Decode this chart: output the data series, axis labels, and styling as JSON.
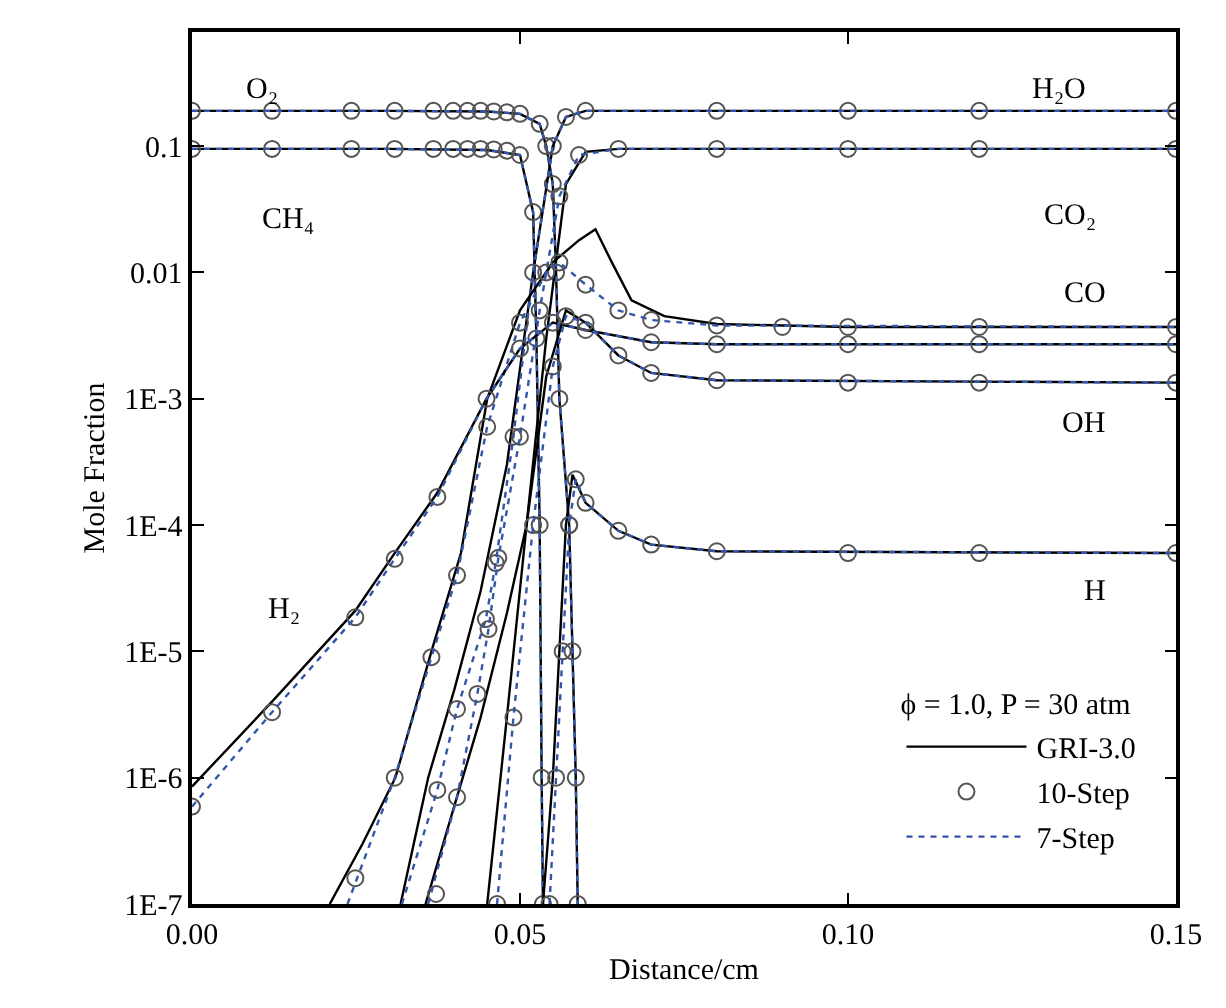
{
  "chart_data": {
    "type": "line",
    "xlabel": "Distance/cm",
    "ylabel": "Mole Fraction",
    "log": "y",
    "xlim": [
      0,
      0.15
    ],
    "xticks": [
      {
        "value": 0,
        "label": "0.00"
      },
      {
        "value": 0.05,
        "label": "0.05"
      },
      {
        "value": 0.1,
        "label": "0.10"
      },
      {
        "value": 0.15,
        "label": "0.15"
      }
    ],
    "ylim": [
      1e-07,
      0.8
    ],
    "yticks": [
      {
        "value": 1e-07,
        "label": "1E-7"
      },
      {
        "value": 1e-06,
        "label": "1E-6"
      },
      {
        "value": 1e-05,
        "label": "1E-5"
      },
      {
        "value": 0.0001,
        "label": "1E-4"
      },
      {
        "value": 0.001,
        "label": "1E-3"
      },
      0.01,
      0.1
    ],
    "legend": "bottom right",
    "legend_title": "ϕ = 1.0, P = 30 atm",
    "annotations": [
      "O₂",
      "CH₄",
      "H₂O",
      "CO₂",
      "CO",
      "OH",
      "H",
      "H₂"
    ],
    "series": [
      {
        "name": "GRI-3.0",
        "type": "line",
        "color": "#000000",
        "line_style": "solid",
        "marker": "none",
        "x": [
          0,
          0.03,
          0.045,
          0.05,
          0.053,
          0.054,
          0.055,
          0.0555,
          0.056,
          0.0575,
          0.058,
          0.0585,
          0.0588
        ],
        "values": [
          0.19,
          0.19,
          0.188,
          0.18,
          0.15,
          0.1,
          0.05,
          0.01,
          0.001,
          0.0001,
          1e-05,
          1e-06,
          1e-07
        ]
      },
      {
        "name": "10-Step",
        "type": "scatter",
        "color": "#555555",
        "marker": "circle",
        "x": [
          0,
          0.0122,
          0.0243,
          0.0309,
          0.0368,
          0.0398,
          0.042,
          0.044,
          0.046,
          0.048,
          0.05,
          0.053,
          0.054,
          0.055,
          0.0555,
          0.056,
          0.0575,
          0.058,
          0.0585,
          0.0588
        ],
        "values": [
          0.19,
          0.19,
          0.19,
          0.19,
          0.19,
          0.19,
          0.19,
          0.19,
          0.188,
          0.185,
          0.18,
          0.15,
          0.1,
          0.05,
          0.01,
          0.001,
          0.0001,
          1e-05,
          1e-06,
          1e-07
        ]
      },
      {
        "name": "7-Step",
        "type": "line",
        "color": "#3355aa",
        "line_style": "dotted",
        "marker": "none",
        "x": [
          0,
          0.03,
          0.045,
          0.05,
          0.053,
          0.054,
          0.055,
          0.0555,
          0.056,
          0.0575,
          0.058,
          0.0585,
          0.0588
        ],
        "values": [
          0.19,
          0.19,
          0.188,
          0.18,
          0.15,
          0.1,
          0.05,
          0.01,
          0.001,
          0.0001,
          1e-05,
          1e-06,
          1e-07
        ]
      },
      {
        "type": "line",
        "color": "#000000",
        "line_style": "solid",
        "marker": "none",
        "x": [
          0,
          0.03,
          0.045,
          0.05,
          0.052,
          0.0525,
          0.053,
          0.0533,
          0.0535
        ],
        "values": [
          0.095,
          0.095,
          0.093,
          0.085,
          0.03,
          0.003,
          0.0001,
          1e-06,
          1e-07
        ]
      },
      {
        "type": "scatter",
        "color": "#555555",
        "marker": "circle",
        "x": [
          0,
          0.0122,
          0.0243,
          0.0309,
          0.0368,
          0.0398,
          0.042,
          0.044,
          0.046,
          0.048,
          0.05,
          0.052,
          0.0525,
          0.053,
          0.0533,
          0.0535
        ],
        "values": [
          0.095,
          0.095,
          0.095,
          0.095,
          0.095,
          0.095,
          0.095,
          0.095,
          0.094,
          0.092,
          0.085,
          0.03,
          0.003,
          0.0001,
          1e-06,
          1e-07
        ]
      },
      {
        "type": "line",
        "color": "#3355aa",
        "line_style": "dotted",
        "marker": "none",
        "x": [
          0,
          0.03,
          0.045,
          0.05,
          0.052,
          0.0525,
          0.053,
          0.0533,
          0.0535
        ],
        "values": [
          0.095,
          0.095,
          0.093,
          0.085,
          0.03,
          0.003,
          0.0001,
          1e-06,
          1e-07
        ]
      },
      {
        "type": "line",
        "color": "#000000",
        "line_style": "solid",
        "marker": "none",
        "x": [
          0.0318,
          0.036,
          0.04,
          0.044,
          0.048,
          0.052,
          0.055,
          0.057,
          0.06,
          0.07,
          0.15
        ],
        "values": [
          1e-07,
          1e-06,
          5e-06,
          3e-05,
          0.0003,
          0.01,
          0.1,
          0.17,
          0.19,
          0.19,
          0.19
        ]
      },
      {
        "type": "scatter",
        "color": "#555555",
        "marker": "circle",
        "x": [
          0.0374,
          0.0404,
          0.0448,
          0.0463,
          0.049,
          0.052,
          0.055,
          0.057,
          0.06,
          0.08,
          0.1,
          0.12,
          0.15
        ],
        "values": [
          8e-07,
          3.5e-06,
          1.8e-05,
          5e-05,
          0.0005,
          0.01,
          0.1,
          0.17,
          0.19,
          0.19,
          0.19,
          0.19,
          0.19
        ]
      },
      {
        "type": "line",
        "color": "#3355aa",
        "line_style": "dotted",
        "marker": "none",
        "x": [
          0.032,
          0.0374,
          0.0404,
          0.0448,
          0.0463,
          0.049,
          0.052,
          0.055,
          0.057,
          0.06,
          0.15
        ],
        "values": [
          1e-07,
          8e-07,
          3.5e-06,
          1.8e-05,
          5e-05,
          0.0005,
          0.01,
          0.1,
          0.17,
          0.19,
          0.19
        ]
      },
      {
        "type": "line",
        "color": "#000000",
        "line_style": "solid",
        "marker": "none",
        "x": [
          0.0356,
          0.04,
          0.044,
          0.048,
          0.051,
          0.054,
          0.057,
          0.06,
          0.065,
          0.15
        ],
        "values": [
          1e-07,
          6e-07,
          3e-06,
          2e-05,
          0.0001,
          0.003,
          0.05,
          0.09,
          0.095,
          0.095
        ]
      },
      {
        "type": "scatter",
        "color": "#555555",
        "marker": "circle",
        "x": [
          0.0372,
          0.0404,
          0.0435,
          0.0452,
          0.0467,
          0.05,
          0.053,
          0.056,
          0.059,
          0.065,
          0.08,
          0.1,
          0.12,
          0.15
        ],
        "values": [
          1.2e-07,
          7e-07,
          4.6e-06,
          1.5e-05,
          5.5e-05,
          0.0005,
          0.005,
          0.04,
          0.085,
          0.095,
          0.095,
          0.095,
          0.095,
          0.095
        ]
      },
      {
        "type": "line",
        "color": "#3355aa",
        "line_style": "dotted",
        "marker": "none",
        "x": [
          0.036,
          0.0404,
          0.0435,
          0.0452,
          0.0467,
          0.05,
          0.053,
          0.056,
          0.059,
          0.065,
          0.15
        ],
        "values": [
          1e-07,
          7e-07,
          4.6e-06,
          1.5e-05,
          5.5e-05,
          0.0005,
          0.005,
          0.04,
          0.085,
          0.095,
          0.095
        ]
      },
      {
        "type": "line",
        "color": "#000000",
        "line_style": "solid",
        "marker": "none",
        "x": [
          0.021,
          0.026,
          0.031,
          0.0365,
          0.041,
          0.045,
          0.05,
          0.055,
          0.059,
          0.0615,
          0.064,
          0.067,
          0.072,
          0.08,
          0.1,
          0.15
        ],
        "values": [
          1e-07,
          3e-07,
          1e-06,
          1e-05,
          6e-05,
          0.001,
          0.005,
          0.012,
          0.018,
          0.022,
          0.012,
          0.006,
          0.0045,
          0.0039,
          0.0037,
          0.0037
        ]
      },
      {
        "type": "scatter",
        "color": "#555555",
        "marker": "circle",
        "x": [
          0.0249,
          0.0309,
          0.0365,
          0.0404,
          0.045,
          0.05,
          0.054,
          0.056,
          0.06,
          0.065,
          0.07,
          0.08,
          0.09,
          0.1,
          0.12,
          0.15
        ],
        "values": [
          1.6e-07,
          1e-06,
          9e-06,
          4e-05,
          0.0006,
          0.004,
          0.01,
          0.012,
          0.008,
          0.005,
          0.0042,
          0.0038,
          0.0037,
          0.0037,
          0.0037,
          0.0037
        ]
      },
      {
        "type": "line",
        "color": "#3355aa",
        "line_style": "dotted",
        "marker": "none",
        "x": [
          0.0237,
          0.0309,
          0.0365,
          0.0404,
          0.045,
          0.05,
          0.054,
          0.056,
          0.06,
          0.065,
          0.07,
          0.08,
          0.15
        ],
        "values": [
          1e-07,
          1e-06,
          9e-06,
          4e-05,
          0.0006,
          0.004,
          0.01,
          0.012,
          0.008,
          0.005,
          0.0042,
          0.0038,
          0.0037
        ]
      },
      {
        "type": "line",
        "color": "#000000",
        "line_style": "solid",
        "marker": "none",
        "x": [
          0,
          0.0122,
          0.0249,
          0.0309,
          0.0374,
          0.0449,
          0.05,
          0.055,
          0.06,
          0.07,
          0.08,
          0.15
        ],
        "values": [
          8.5e-07,
          4e-06,
          2.1e-05,
          6e-05,
          0.00018,
          0.001,
          0.0025,
          0.004,
          0.0035,
          0.0028,
          0.0027,
          0.0027
        ]
      },
      {
        "type": "scatter",
        "color": "#555555",
        "marker": "circle",
        "x": [
          0,
          0.0122,
          0.0249,
          0.0309,
          0.0374,
          0.0449,
          0.05,
          0.055,
          0.06,
          0.07,
          0.08,
          0.1,
          0.12,
          0.15
        ],
        "values": [
          5.9e-07,
          3.3e-06,
          1.86e-05,
          5.4e-05,
          0.000167,
          0.001,
          0.0025,
          0.004,
          0.0035,
          0.0028,
          0.0027,
          0.0027,
          0.0027,
          0.0027
        ]
      },
      {
        "type": "line",
        "color": "#3355aa",
        "line_style": "dotted",
        "marker": "none",
        "x": [
          0,
          0.0122,
          0.0249,
          0.0309,
          0.0374,
          0.0449,
          0.05,
          0.055,
          0.06,
          0.07,
          0.08,
          0.15
        ],
        "values": [
          5.9e-07,
          3.3e-06,
          1.86e-05,
          5.4e-05,
          0.000167,
          0.001,
          0.0025,
          0.004,
          0.0035,
          0.0028,
          0.0027,
          0.0027
        ]
      },
      {
        "type": "line",
        "color": "#000000",
        "line_style": "solid",
        "marker": "none",
        "x": [
          0.045,
          0.048,
          0.051,
          0.054,
          0.057,
          0.06,
          0.065,
          0.07,
          0.08,
          0.15
        ],
        "values": [
          1e-07,
          3e-06,
          0.0001,
          0.0015,
          0.005,
          0.004,
          0.0022,
          0.0016,
          0.0014,
          0.00134
        ]
      },
      {
        "type": "scatter",
        "color": "#555555",
        "marker": "circle",
        "x": [
          0.0465,
          0.049,
          0.052,
          0.055,
          0.057,
          0.06,
          0.065,
          0.07,
          0.08,
          0.1,
          0.12,
          0.15
        ],
        "values": [
          1e-07,
          3e-06,
          0.0001,
          0.0018,
          0.0045,
          0.004,
          0.0022,
          0.0016,
          0.0014,
          0.00134,
          0.00134,
          0.00134
        ]
      },
      {
        "type": "line",
        "color": "#3355aa",
        "line_style": "dotted",
        "marker": "none",
        "x": [
          0.0465,
          0.049,
          0.052,
          0.055,
          0.057,
          0.06,
          0.065,
          0.07,
          0.08,
          0.15
        ],
        "values": [
          1e-07,
          3e-06,
          0.0001,
          0.0018,
          0.0045,
          0.004,
          0.0022,
          0.0016,
          0.0014,
          0.00134
        ]
      },
      {
        "type": "line",
        "color": "#000000",
        "line_style": "solid",
        "marker": "none",
        "x": [
          0.0535,
          0.055,
          0.056,
          0.057,
          0.058,
          0.06,
          0.065,
          0.07,
          0.08,
          0.15
        ],
        "values": [
          1e-07,
          1e-06,
          1e-05,
          0.0001,
          0.00025,
          0.00015,
          9e-05,
          7e-05,
          6.2e-05,
          6e-05
        ]
      },
      {
        "type": "scatter",
        "color": "#555555",
        "marker": "circle",
        "x": [
          0.0545,
          0.0555,
          0.0565,
          0.0575,
          0.0585,
          0.06,
          0.065,
          0.07,
          0.08,
          0.1,
          0.12,
          0.15
        ],
        "values": [
          1e-07,
          1e-06,
          1e-05,
          0.0001,
          0.00023,
          0.00015,
          9e-05,
          7e-05,
          6.2e-05,
          6e-05,
          6e-05,
          6e-05
        ]
      },
      {
        "type": "line",
        "color": "#3355aa",
        "line_style": "dotted",
        "marker": "none",
        "x": [
          0.0545,
          0.0555,
          0.0565,
          0.0575,
          0.0585,
          0.06,
          0.065,
          0.07,
          0.08,
          0.15
        ],
        "values": [
          1e-07,
          1e-06,
          1e-05,
          0.0001,
          0.00023,
          0.00015,
          9e-05,
          7e-05,
          6.2e-05,
          6e-05
        ]
      }
    ]
  }
}
